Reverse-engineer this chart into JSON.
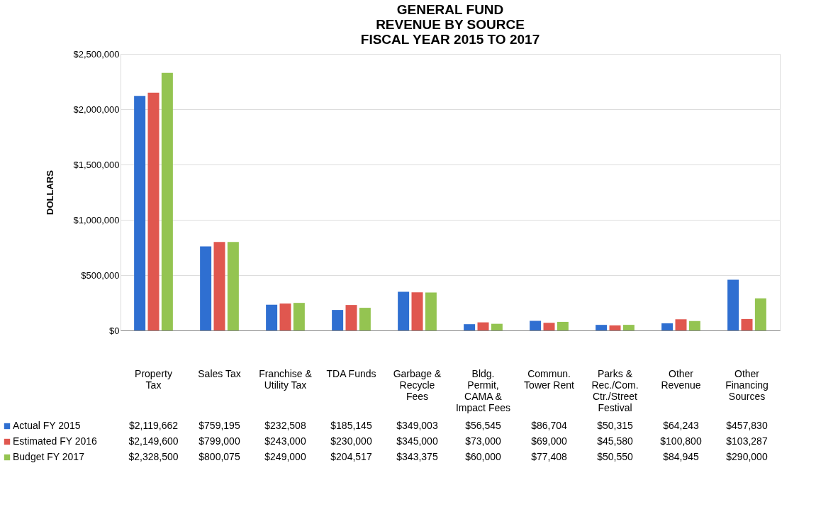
{
  "chart_data": {
    "type": "bar",
    "title": "GENERAL FUND\nREVENUE BY SOURCE\nFISCAL YEAR 2015 TO 2017",
    "ylabel": "DOLLARS",
    "categories": [
      "Property Tax",
      "Sales Tax",
      "Franchise & Utility Tax",
      "TDA Funds",
      "Garbage & Recycle Fees",
      "Bldg. Permit, CAMA & Impact Fees",
      "Commun. Tower Rent",
      "Parks & Rec./Com. Ctr./Street Festival",
      "Other Revenue",
      "Other Financing Sources"
    ],
    "series": [
      {
        "name": "Actual FY 2015",
        "color": "#2f6fd1",
        "values": [
          2119662,
          759195,
          232508,
          185145,
          349003,
          56545,
          86704,
          50315,
          64243,
          457830
        ],
        "value_labels": [
          "$2,119,662",
          "$759,195",
          "$232,508",
          "$185,145",
          "$349,003",
          "$56,545",
          "$86,704",
          "$50,315",
          "$64,243",
          "$457,830"
        ]
      },
      {
        "name": "Estimated FY 2016",
        "color": "#e0574f",
        "values": [
          2149600,
          799000,
          243000,
          230000,
          345000,
          73000,
          69000,
          45580,
          100800,
          103287
        ],
        "value_labels": [
          "$2,149,600",
          "$799,000",
          "$243,000",
          "$230,000",
          "$345,000",
          "$73,000",
          "$69,000",
          "$45,580",
          "$100,800",
          "$103,287"
        ]
      },
      {
        "name": "Budget FY 2017",
        "color": "#94c451",
        "values": [
          2328500,
          800075,
          249000,
          204517,
          343375,
          60000,
          77408,
          50550,
          84945,
          290000
        ],
        "value_labels": [
          "$2,328,500",
          "$800,075",
          "$249,000",
          "$204,517",
          "$343,375",
          "$60,000",
          "$77,408",
          "$50,550",
          "$84,945",
          "$290,000"
        ]
      }
    ],
    "ylim": [
      0,
      2500000
    ],
    "yticks": [
      {
        "value": 0,
        "label": "$0"
      },
      {
        "value": 500000,
        "label": "$500,000"
      },
      {
        "value": 1000000,
        "label": "$1,000,000"
      },
      {
        "value": 1500000,
        "label": "$1,500,000"
      },
      {
        "value": 2000000,
        "label": "$2,000,000"
      },
      {
        "value": 2500000,
        "label": "$2,500,000"
      }
    ],
    "grid": "y",
    "legend": "bottom"
  }
}
